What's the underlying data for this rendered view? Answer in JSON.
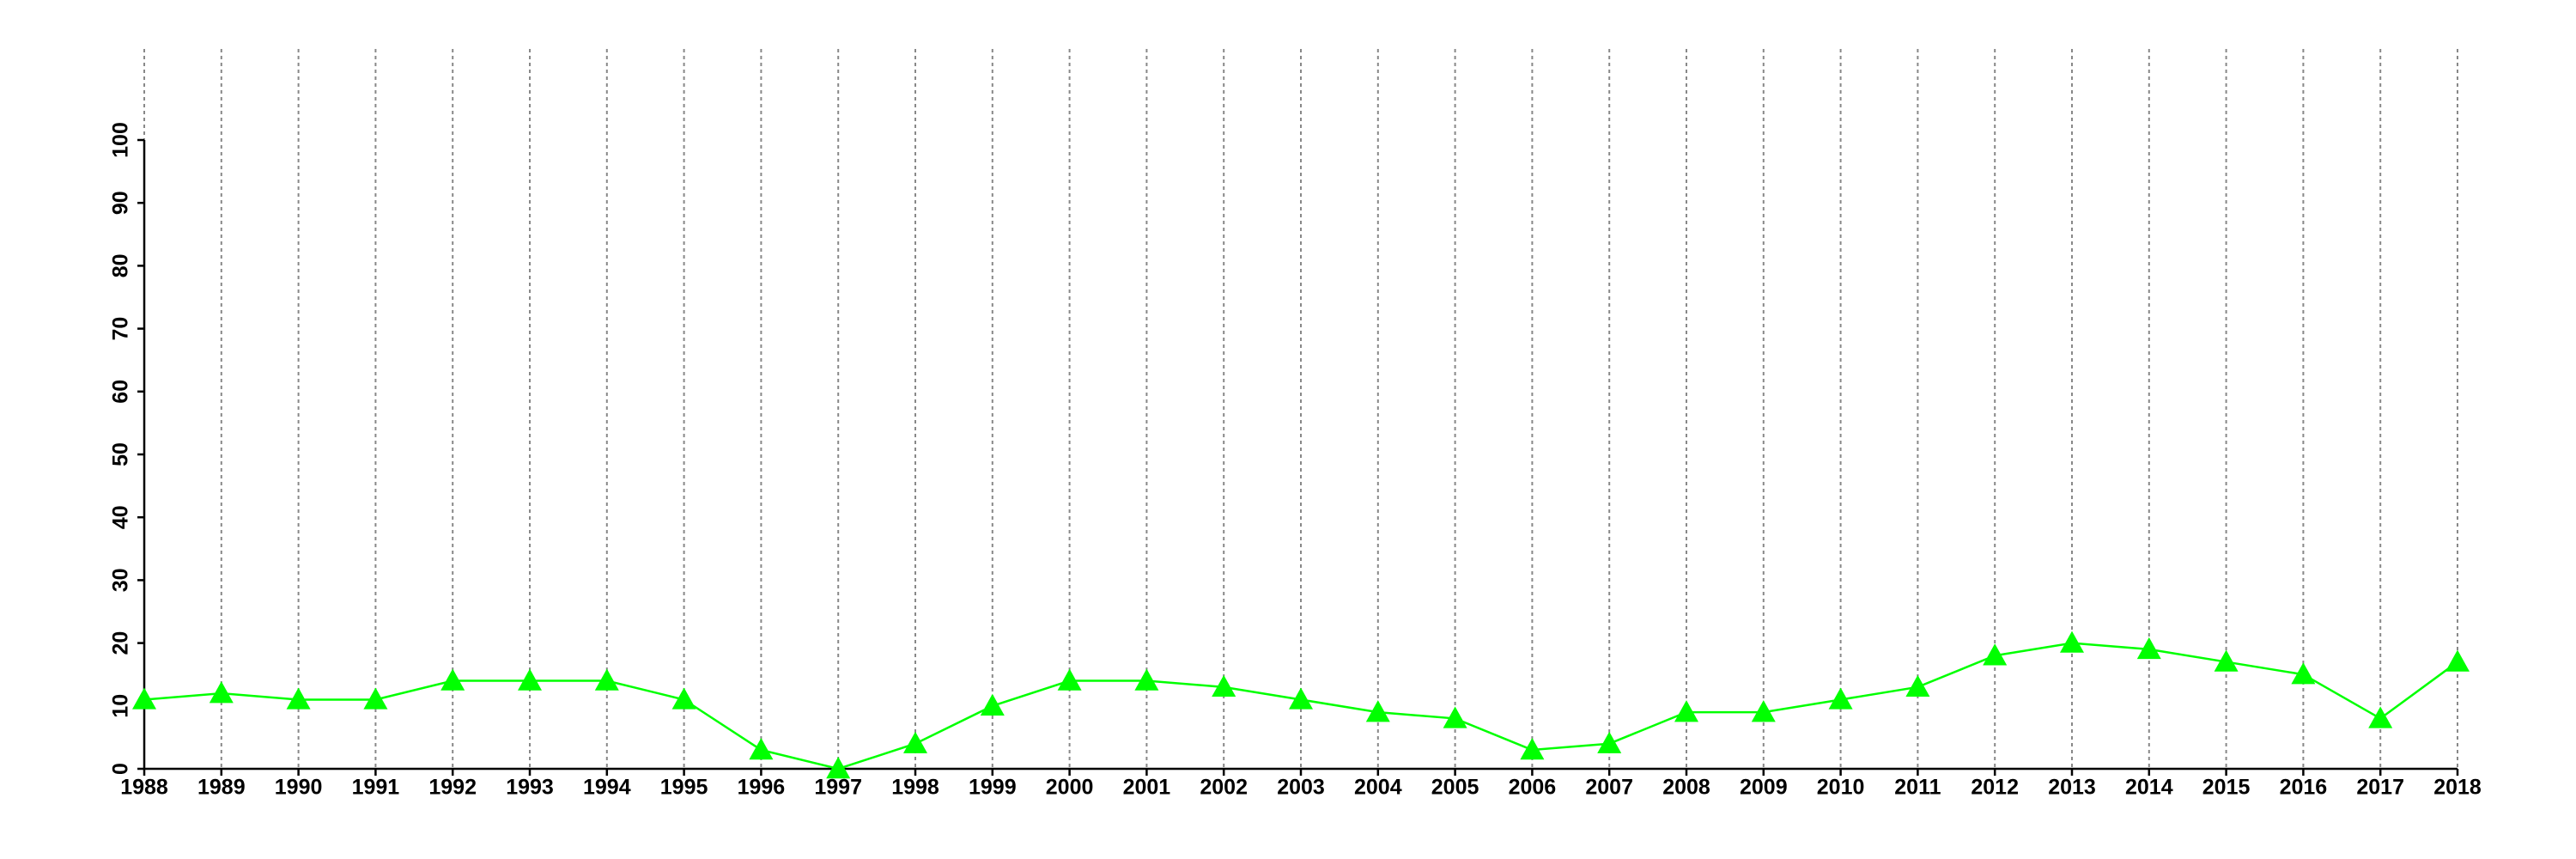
{
  "chart_data": {
    "type": "line",
    "x": [
      1988,
      1989,
      1990,
      1991,
      1992,
      1993,
      1994,
      1995,
      1996,
      1997,
      1998,
      1999,
      2000,
      2001,
      2002,
      2003,
      2004,
      2005,
      2006,
      2007,
      2008,
      2009,
      2010,
      2011,
      2012,
      2013,
      2014,
      2015,
      2016,
      2017,
      2018
    ],
    "values": [
      11,
      12,
      11,
      11,
      14,
      14,
      14,
      11,
      3,
      0,
      4,
      10,
      14,
      14,
      13,
      11,
      9,
      8,
      3,
      4,
      9,
      9,
      11,
      13,
      18,
      20,
      19,
      17,
      15,
      8,
      17
    ],
    "color": "#00ff00",
    "xlim": [
      1988,
      2018
    ],
    "xticks": [
      1988,
      1989,
      1990,
      1991,
      1992,
      1993,
      1994,
      1995,
      1996,
      1997,
      1998,
      1999,
      2000,
      2001,
      2002,
      2003,
      2004,
      2005,
      2006,
      2007,
      2008,
      2009,
      2010,
      2011,
      2012,
      2013,
      2014,
      2015,
      2016,
      2017,
      2018
    ],
    "ylim": [
      0,
      100
    ],
    "yticks": [
      0,
      10,
      20,
      30,
      40,
      50,
      60,
      70,
      80,
      90,
      100
    ],
    "grid": true
  }
}
